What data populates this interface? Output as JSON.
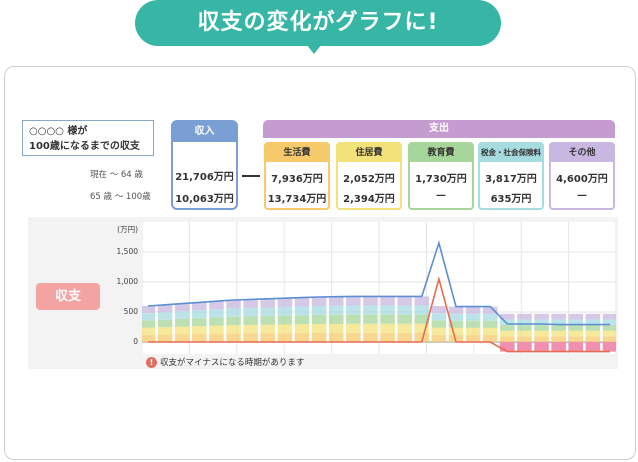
{
  "banner": {
    "title": "収支の変化がグラフに!"
  },
  "profile": {
    "line1": "○○○○ 様が",
    "line2": "100歳になるまでの収支"
  },
  "ranges": {
    "current": "現在 〜 64 歳",
    "later": "65 歳 〜 100歳"
  },
  "income": {
    "label": "収入",
    "current": "21,706万円",
    "later": "10,063万円"
  },
  "expense": {
    "label": "支出",
    "columns": [
      {
        "label": "生活費",
        "current": "7,936万円",
        "later": "13,734万円",
        "color": "#f6c96b"
      },
      {
        "label": "住居費",
        "current": "2,052万円",
        "later": "2,394万円",
        "color": "#f3e17a"
      },
      {
        "label": "教育費",
        "current": "1,730万円",
        "later": "—",
        "color": "#a7d69a"
      },
      {
        "label": "税金・社会保険料",
        "current": "3,817万円",
        "later": "635万円",
        "color": "#a6dbe0"
      },
      {
        "label": "その他",
        "current": "4,600万円",
        "later": "—",
        "color": "#c8b7e0"
      }
    ]
  },
  "chart_badge": "収支",
  "chart_data": {
    "type": "area",
    "ylabel": "(万円)",
    "yticks": [
      "1,500",
      "1,000",
      "500",
      "0"
    ],
    "ylim": [
      -200,
      2000
    ],
    "lines": [
      {
        "name": "income",
        "color": "#5b8fd0",
        "values": [
          600,
          620,
          640,
          660,
          680,
          700,
          710,
          720,
          730,
          740,
          750,
          755,
          760,
          760,
          760,
          760,
          760,
          1650,
          590,
          590,
          590,
          300,
          300,
          300,
          290,
          290,
          290,
          290
        ]
      },
      {
        "name": "balance",
        "color": "#e86b4e",
        "values": [
          0,
          0,
          0,
          0,
          0,
          0,
          0,
          0,
          0,
          0,
          0,
          0,
          0,
          0,
          0,
          0,
          0,
          1050,
          0,
          0,
          0,
          -160,
          -160,
          -160,
          -160,
          -160,
          -160,
          -160
        ]
      }
    ],
    "stack_colors": [
      "#f6c96b",
      "#f3e17a",
      "#a7d69a",
      "#a6dbe0",
      "#c8b7e0"
    ]
  },
  "warning": {
    "text": "収支がマイナスになる時期があります",
    "icon": "exclamation-icon"
  }
}
